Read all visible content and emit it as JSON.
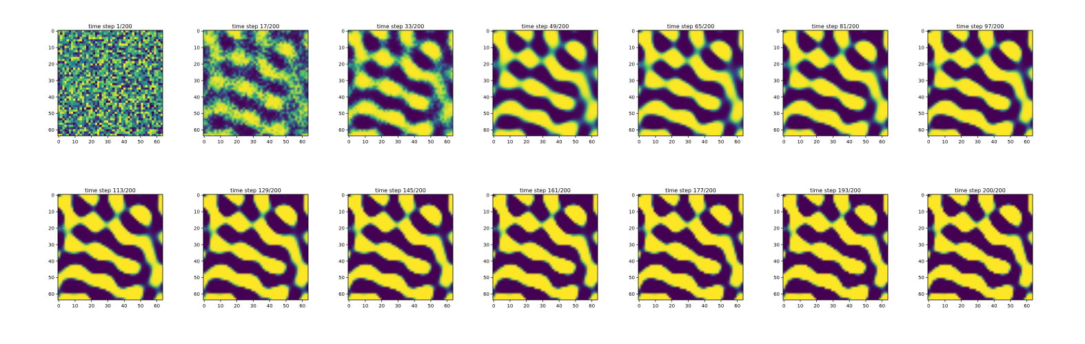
{
  "chart_data": {
    "type": "heatmap",
    "colormap": "viridis",
    "colors": {
      "low": "#440154",
      "mid": "#21918c",
      "high": "#fde725"
    },
    "grid_shape": [
      64,
      64
    ],
    "xlim": [
      0,
      63
    ],
    "ylim": [
      63,
      0
    ],
    "x_ticks": [
      "0",
      "10",
      "20",
      "30",
      "40",
      "50",
      "60"
    ],
    "y_ticks": [
      "0",
      "10",
      "20",
      "30",
      "40",
      "50",
      "60"
    ],
    "layout": {
      "rows": 2,
      "cols": 7
    },
    "panels": [
      {
        "title": "time step 1/200",
        "step": 1
      },
      {
        "title": "time step 17/200",
        "step": 17
      },
      {
        "title": "time step 33/200",
        "step": 33
      },
      {
        "title": "time step 49/200",
        "step": 49
      },
      {
        "title": "time step 65/200",
        "step": 65
      },
      {
        "title": "time step 81/200",
        "step": 81
      },
      {
        "title": "time step 97/200",
        "step": 97
      },
      {
        "title": "time step 113/200",
        "step": 113
      },
      {
        "title": "time step 129/200",
        "step": 129
      },
      {
        "title": "time step 145/200",
        "step": 145
      },
      {
        "title": "time step 161/200",
        "step": 161
      },
      {
        "title": "time step 177/200",
        "step": 177
      },
      {
        "title": "time step 193/200",
        "step": 193
      },
      {
        "title": "time step 200/200",
        "step": 200
      }
    ]
  }
}
